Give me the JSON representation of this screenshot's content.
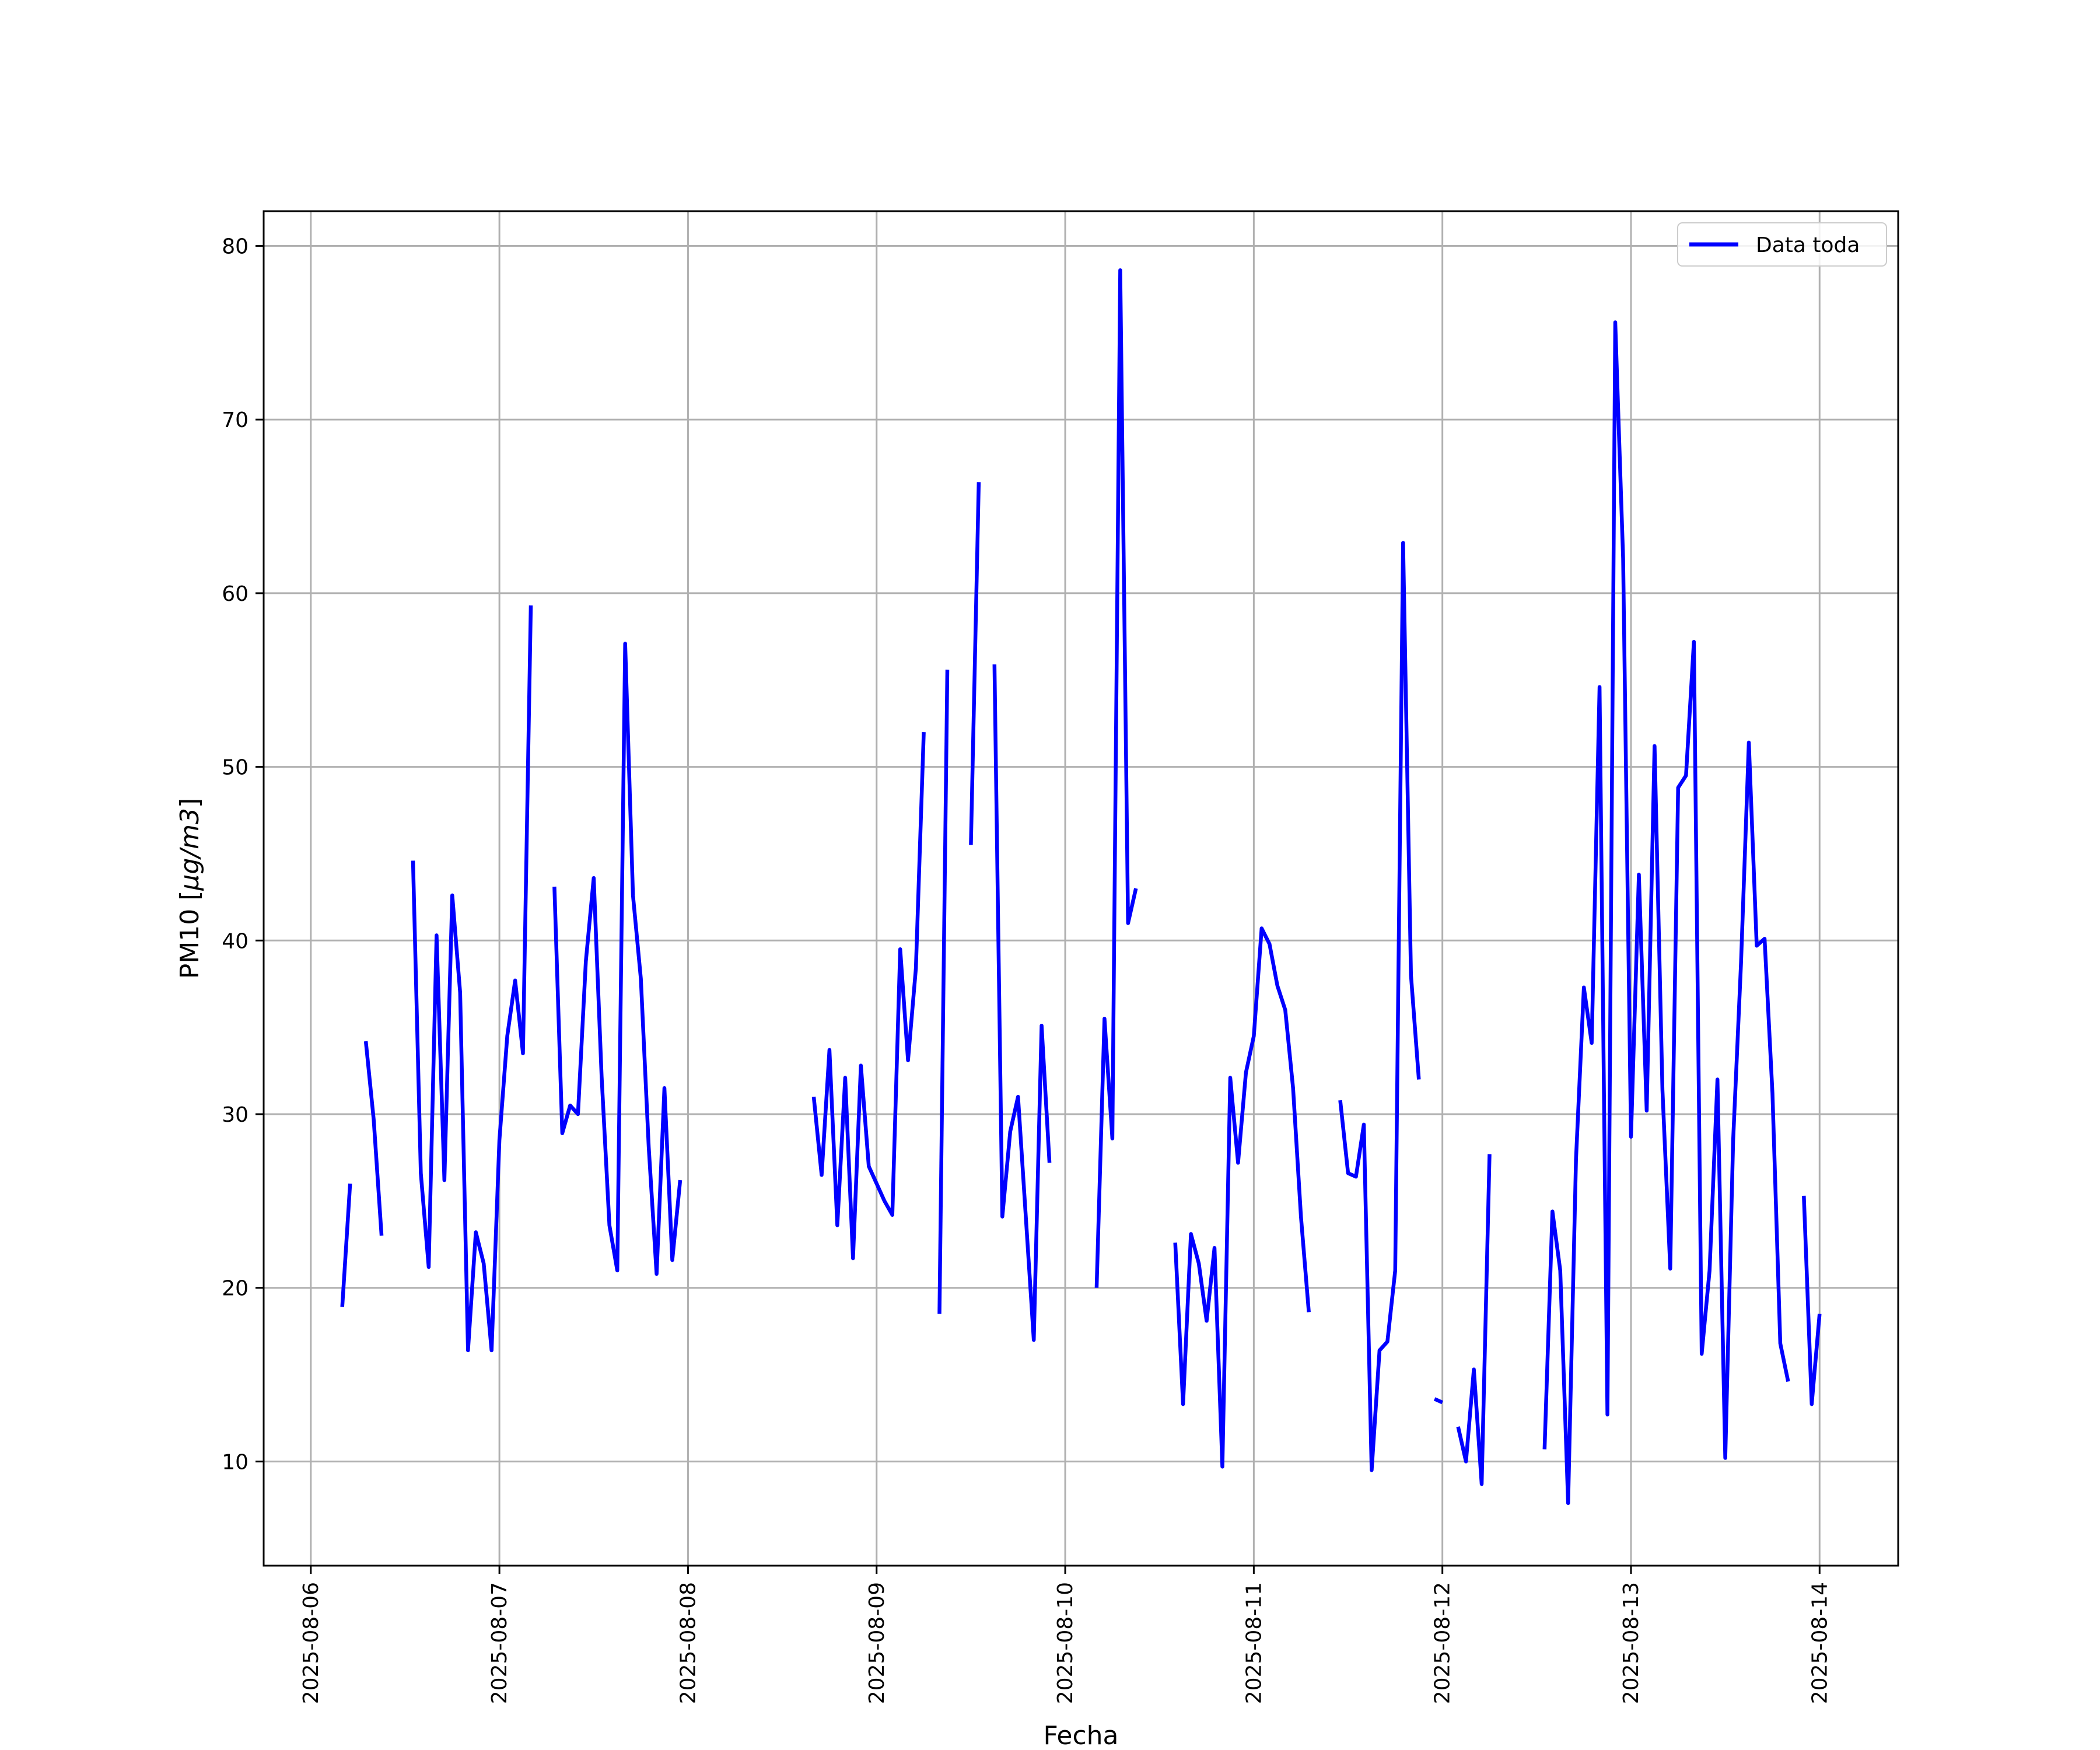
{
  "chart_data": {
    "type": "line",
    "title": "",
    "xlabel": "Fecha",
    "ylabel_main": "PM10 [",
    "ylabel_italic": "μg/m3",
    "ylabel_close": "]",
    "x_type": "date",
    "xlim": [
      "2025-08-05T18:00",
      "2025-08-14T10:00"
    ],
    "ylim": [
      4,
      82
    ],
    "x_ticks": [
      "2025-08-06",
      "2025-08-07",
      "2025-08-08",
      "2025-08-09",
      "2025-08-10",
      "2025-08-11",
      "2025-08-12",
      "2025-08-13",
      "2025-08-14"
    ],
    "y_ticks": [
      10,
      20,
      30,
      40,
      50,
      60,
      70,
      80
    ],
    "grid": true,
    "legend": {
      "position": "upper-right"
    },
    "colors": {
      "series": "#0000ff",
      "grid": "#b0b0b0",
      "frame": "#000000"
    },
    "series": [
      {
        "name": "Data toda",
        "color": "#0000ff",
        "segments": [
          [
            [
              "2025-08-06T04:00",
              18.9
            ],
            [
              "2025-08-06T05:00",
              26.0
            ]
          ],
          [
            [
              "2025-08-06T07:00",
              34.2
            ],
            [
              "2025-08-06T08:00",
              29.7
            ],
            [
              "2025-08-06T09:00",
              23.0
            ]
          ],
          [
            [
              "2025-08-06T13:00",
              44.6
            ],
            [
              "2025-08-06T14:00",
              26.6
            ],
            [
              "2025-08-06T15:00",
              21.2
            ],
            [
              "2025-08-06T16:00",
              40.3
            ],
            [
              "2025-08-06T17:00",
              26.2
            ],
            [
              "2025-08-06T18:00",
              42.6
            ],
            [
              "2025-08-06T19:00",
              37.0
            ],
            [
              "2025-08-06T20:00",
              16.4
            ],
            [
              "2025-08-06T21:00",
              23.2
            ],
            [
              "2025-08-06T22:00",
              21.4
            ],
            [
              "2025-08-06T23:00",
              16.4
            ],
            [
              "2025-08-07T00:00",
              28.5
            ],
            [
              "2025-08-07T01:00",
              34.5
            ],
            [
              "2025-08-07T02:00",
              37.7
            ],
            [
              "2025-08-07T03:00",
              33.5
            ],
            [
              "2025-08-07T04:00",
              59.3
            ]
          ],
          [
            [
              "2025-08-07T07:00",
              43.1
            ],
            [
              "2025-08-07T08:00",
              28.9
            ],
            [
              "2025-08-07T09:00",
              30.5
            ],
            [
              "2025-08-07T10:00",
              30.0
            ],
            [
              "2025-08-07T11:00",
              38.8
            ],
            [
              "2025-08-07T12:00",
              43.6
            ],
            [
              "2025-08-07T13:00",
              32.2
            ],
            [
              "2025-08-07T14:00",
              23.6
            ],
            [
              "2025-08-07T15:00",
              21.0
            ],
            [
              "2025-08-07T16:00",
              57.1
            ],
            [
              "2025-08-07T17:00",
              42.6
            ],
            [
              "2025-08-07T18:00",
              37.8
            ],
            [
              "2025-08-07T19:00",
              28.1
            ],
            [
              "2025-08-07T20:00",
              20.8
            ],
            [
              "2025-08-07T21:00",
              31.5
            ],
            [
              "2025-08-07T22:00",
              21.6
            ],
            [
              "2025-08-07T23:00",
              26.2
            ]
          ],
          [
            [
              "2025-08-08T16:00",
              31.0
            ],
            [
              "2025-08-08T17:00",
              26.5
            ],
            [
              "2025-08-08T18:00",
              33.7
            ],
            [
              "2025-08-08T19:00",
              23.6
            ],
            [
              "2025-08-08T20:00",
              32.1
            ],
            [
              "2025-08-08T21:00",
              21.7
            ],
            [
              "2025-08-08T22:00",
              32.8
            ],
            [
              "2025-08-08T23:00",
              27.0
            ],
            [
              "2025-08-09T00:00",
              26.0
            ],
            [
              "2025-08-09T01:00",
              25.0
            ],
            [
              "2025-08-09T02:00",
              24.2
            ],
            [
              "2025-08-09T03:00",
              39.5
            ],
            [
              "2025-08-09T04:00",
              33.1
            ],
            [
              "2025-08-09T05:00",
              38.4
            ],
            [
              "2025-08-09T06:00",
              52.0
            ]
          ],
          [
            [
              "2025-08-09T08:00",
              18.5
            ],
            [
              "2025-08-09T09:00",
              55.6
            ]
          ],
          [
            [
              "2025-08-09T12:00",
              45.5
            ],
            [
              "2025-08-09T13:00",
              66.4
            ]
          ],
          [
            [
              "2025-08-09T15:00",
              55.9
            ],
            [
              "2025-08-09T16:00",
              24.1
            ],
            [
              "2025-08-09T17:00",
              29.0
            ],
            [
              "2025-08-09T18:00",
              31.0
            ],
            [
              "2025-08-09T19:00",
              24.0
            ],
            [
              "2025-08-09T20:00",
              17.0
            ],
            [
              "2025-08-09T21:00",
              35.1
            ],
            [
              "2025-08-09T22:00",
              27.2
            ]
          ],
          [
            [
              "2025-08-10T04:00",
              20.0
            ],
            [
              "2025-08-10T05:00",
              35.5
            ],
            [
              "2025-08-10T06:00",
              28.6
            ],
            [
              "2025-08-10T07:00",
              78.6
            ],
            [
              "2025-08-10T08:00",
              41.0
            ],
            [
              "2025-08-10T09:00",
              43.0
            ]
          ],
          [
            [
              "2025-08-10T14:00",
              22.6
            ],
            [
              "2025-08-10T15:00",
              13.3
            ],
            [
              "2025-08-10T16:00",
              23.1
            ],
            [
              "2025-08-10T17:00",
              21.4
            ],
            [
              "2025-08-10T18:00",
              18.1
            ],
            [
              "2025-08-10T19:00",
              22.3
            ],
            [
              "2025-08-10T20:00",
              9.7
            ],
            [
              "2025-08-10T21:00",
              32.1
            ],
            [
              "2025-08-10T22:00",
              27.2
            ],
            [
              "2025-08-10T23:00",
              32.4
            ],
            [
              "2025-08-11T00:00",
              34.5
            ],
            [
              "2025-08-11T01:00",
              40.7
            ],
            [
              "2025-08-11T02:00",
              39.8
            ],
            [
              "2025-08-11T03:00",
              37.4
            ],
            [
              "2025-08-11T04:00",
              36.0
            ],
            [
              "2025-08-11T05:00",
              31.5
            ],
            [
              "2025-08-11T06:00",
              24.1
            ],
            [
              "2025-08-11T07:00",
              18.6
            ]
          ],
          [
            [
              "2025-08-11T11:00",
              30.8
            ],
            [
              "2025-08-11T12:00",
              26.6
            ],
            [
              "2025-08-11T13:00",
              26.4
            ],
            [
              "2025-08-11T14:00",
              29.4
            ],
            [
              "2025-08-11T15:00",
              9.5
            ],
            [
              "2025-08-11T16:00",
              16.4
            ],
            [
              "2025-08-11T17:00",
              16.9
            ],
            [
              "2025-08-11T18:00",
              21.0
            ],
            [
              "2025-08-11T19:00",
              62.9
            ],
            [
              "2025-08-11T20:00",
              38.0
            ],
            [
              "2025-08-11T21:00",
              32.0
            ]
          ],
          [
            [
              "2025-08-11T23:00",
              13.6
            ],
            [
              "2025-08-12T00:00",
              13.4
            ]
          ],
          [
            [
              "2025-08-12T02:00",
              12.0
            ],
            [
              "2025-08-12T03:00",
              10.0
            ],
            [
              "2025-08-12T04:00",
              15.3
            ],
            [
              "2025-08-12T05:00",
              8.7
            ],
            [
              "2025-08-12T06:00",
              27.7
            ]
          ],
          [
            [
              "2025-08-12T13:00",
              10.7
            ],
            [
              "2025-08-12T14:00",
              24.4
            ],
            [
              "2025-08-12T15:00",
              21.0
            ],
            [
              "2025-08-12T16:00",
              7.6
            ],
            [
              "2025-08-12T17:00",
              27.4
            ],
            [
              "2025-08-12T18:00",
              37.3
            ],
            [
              "2025-08-12T19:00",
              34.1
            ],
            [
              "2025-08-12T20:00",
              54.6
            ],
            [
              "2025-08-12T21:00",
              12.7
            ],
            [
              "2025-08-12T22:00",
              75.6
            ],
            [
              "2025-08-12T23:00",
              62.0
            ],
            [
              "2025-08-13T00:00",
              28.7
            ],
            [
              "2025-08-13T01:00",
              43.8
            ],
            [
              "2025-08-13T02:00",
              30.2
            ],
            [
              "2025-08-13T03:00",
              51.2
            ],
            [
              "2025-08-13T04:00",
              31.4
            ],
            [
              "2025-08-13T05:00",
              21.1
            ],
            [
              "2025-08-13T06:00",
              48.8
            ],
            [
              "2025-08-13T07:00",
              49.5
            ],
            [
              "2025-08-13T08:00",
              57.2
            ],
            [
              "2025-08-13T09:00",
              16.2
            ],
            [
              "2025-08-13T10:00",
              21.0
            ],
            [
              "2025-08-13T11:00",
              32.0
            ],
            [
              "2025-08-13T12:00",
              10.2
            ],
            [
              "2025-08-13T13:00",
              28.5
            ],
            [
              "2025-08-13T14:00",
              38.7
            ],
            [
              "2025-08-13T15:00",
              51.4
            ],
            [
              "2025-08-13T16:00",
              39.7
            ],
            [
              "2025-08-13T17:00",
              40.1
            ],
            [
              "2025-08-13T18:00",
              31.2
            ],
            [
              "2025-08-13T19:00",
              16.8
            ],
            [
              "2025-08-13T20:00",
              14.6
            ]
          ],
          [
            [
              "2025-08-13T22:00",
              25.3
            ],
            [
              "2025-08-13T23:00",
              13.3
            ],
            [
              "2025-08-14T00:00",
              18.5
            ]
          ]
        ]
      }
    ]
  }
}
